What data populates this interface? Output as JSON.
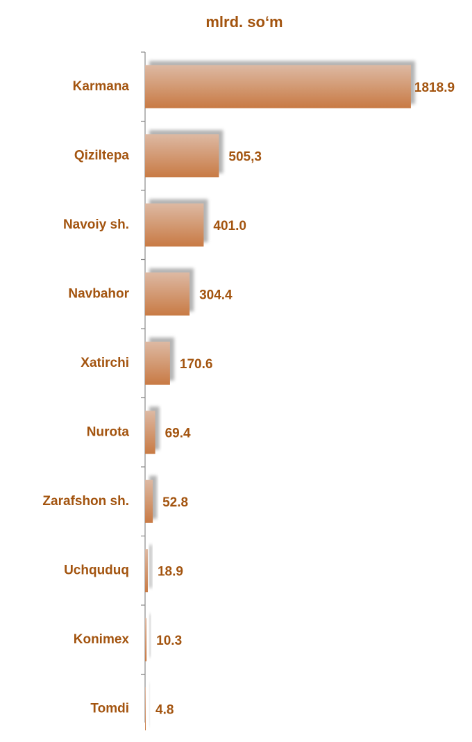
{
  "chart_data": {
    "type": "bar",
    "orientation": "horizontal",
    "title": "mlrd. so‘m",
    "categories": [
      "Karmana",
      "Qiziltepa",
      "Navoiy sh.",
      "Navbahor",
      "Xatirchi",
      "Nurota",
      "Zarafshon sh.",
      "Uchquduq",
      "Konimex",
      "Tomdi"
    ],
    "values": [
      1818.9,
      505.3,
      401.0,
      304.4,
      170.6,
      69.4,
      52.8,
      18.9,
      10.3,
      4.8
    ],
    "value_labels": [
      "1818.9",
      "505,3",
      "401.0",
      "304.4",
      "170.6",
      "69.4",
      "52.8",
      "18.9",
      "10.3",
      "4.8"
    ],
    "color": "#c97d4a",
    "xlim": [
      0,
      1900
    ]
  }
}
